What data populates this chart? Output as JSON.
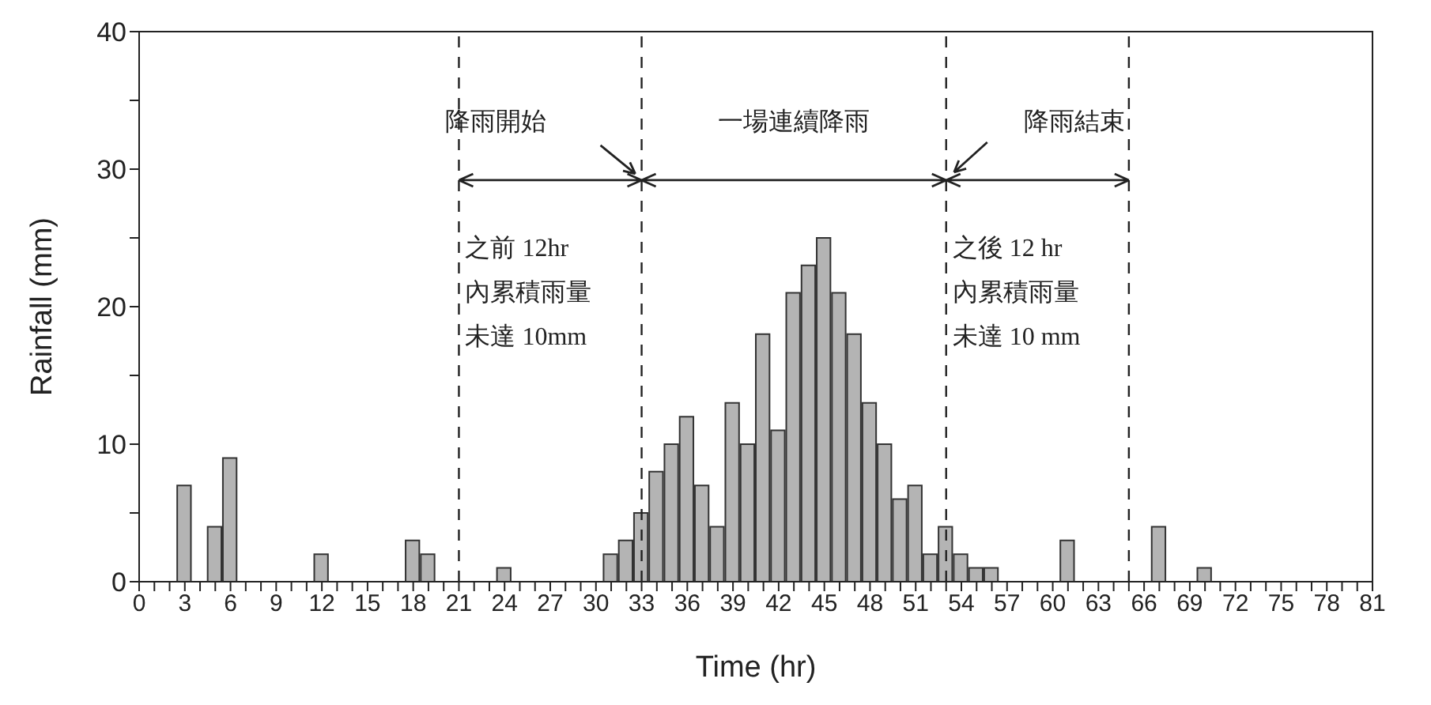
{
  "chart_data": {
    "type": "bar",
    "xlabel": "Time (hr)",
    "ylabel": "Rainfall (mm)",
    "x": [
      3,
      5,
      6,
      12,
      18,
      19,
      24,
      31,
      32,
      33,
      34,
      35,
      36,
      37,
      38,
      39,
      40,
      41,
      42,
      43,
      44,
      45,
      46,
      47,
      48,
      49,
      50,
      51,
      52,
      53,
      54,
      55,
      56,
      61,
      67,
      70
    ],
    "values": [
      7,
      4,
      9,
      2,
      3,
      2,
      1,
      2,
      3,
      5,
      8,
      10,
      12,
      7,
      4,
      13,
      10,
      18,
      11,
      21,
      23,
      25,
      21,
      18,
      13,
      10,
      6,
      7,
      2,
      4,
      2,
      1,
      1,
      3,
      4,
      1
    ],
    "color": "#b4b4b4",
    "xlim": [
      0,
      81
    ],
    "xticks": [
      0,
      {
        "value": 1,
        "label": null
      },
      {
        "value": 2,
        "label": null
      },
      3,
      {
        "value": 4,
        "label": null
      },
      {
        "value": 5,
        "label": null
      },
      6,
      {
        "value": 7,
        "label": null
      },
      {
        "value": 8,
        "label": null
      },
      9,
      {
        "value": 10,
        "label": null
      },
      {
        "value": 11,
        "label": null
      },
      12,
      {
        "value": 13,
        "label": null
      },
      {
        "value": 14,
        "label": null
      },
      15,
      {
        "value": 16,
        "label": null
      },
      {
        "value": 17,
        "label": null
      },
      18,
      {
        "value": 19,
        "label": null
      },
      {
        "value": 20,
        "label": null
      },
      21,
      {
        "value": 22,
        "label": null
      },
      {
        "value": 23,
        "label": null
      },
      24,
      {
        "value": 25,
        "label": null
      },
      {
        "value": 26,
        "label": null
      },
      27,
      {
        "value": 28,
        "label": null
      },
      {
        "value": 29,
        "label": null
      },
      30,
      {
        "value": 31,
        "label": null
      },
      {
        "value": 32,
        "label": null
      },
      33,
      {
        "value": 34,
        "label": null
      },
      {
        "value": 35,
        "label": null
      },
      36,
      {
        "value": 37,
        "label": null
      },
      {
        "value": 38,
        "label": null
      },
      39,
      {
        "value": 40,
        "label": null
      },
      {
        "value": 41,
        "label": null
      },
      42,
      {
        "value": 43,
        "label": null
      },
      {
        "value": 44,
        "label": null
      },
      45,
      {
        "value": 46,
        "label": null
      },
      {
        "value": 47,
        "label": null
      },
      48,
      {
        "value": 49,
        "label": null
      },
      {
        "value": 50,
        "label": null
      },
      51,
      {
        "value": 52,
        "label": null
      },
      {
        "value": 53,
        "label": null
      },
      54,
      {
        "value": 55,
        "label": null
      },
      {
        "value": 56,
        "label": null
      },
      57,
      {
        "value": 58,
        "label": null
      },
      {
        "value": 59,
        "label": null
      },
      60,
      {
        "value": 61,
        "label": null
      },
      {
        "value": 62,
        "label": null
      },
      63,
      {
        "value": 64,
        "label": null
      },
      {
        "value": 65,
        "label": null
      },
      66,
      {
        "value": 67,
        "label": null
      },
      {
        "value": 68,
        "label": null
      },
      69,
      {
        "value": 70,
        "label": null
      },
      {
        "value": 71,
        "label": null
      },
      72,
      {
        "value": 73,
        "label": null
      },
      {
        "value": 74,
        "label": null
      },
      75,
      {
        "value": 76,
        "label": null
      },
      {
        "value": 77,
        "label": null
      },
      78,
      {
        "value": 79,
        "label": null
      },
      {
        "value": 80,
        "label": null
      },
      81
    ],
    "ylim": [
      0,
      40
    ],
    "yticks": [
      0,
      {
        "value": 5,
        "label": null
      },
      10,
      {
        "value": 15,
        "label": null
      },
      20,
      {
        "value": 25,
        "label": null
      },
      30,
      {
        "value": 35,
        "label": null
      },
      40
    ],
    "ref_lines": [
      {
        "axis": "x",
        "value": 21,
        "color": "#222222",
        "line_style": "dashed"
      },
      {
        "axis": "x",
        "value": 33,
        "color": "#222222",
        "line_style": "dashed"
      },
      {
        "axis": "x",
        "value": 53,
        "color": "#222222",
        "line_style": "dashed"
      },
      {
        "axis": "x",
        "value": 65,
        "color": "#222222",
        "line_style": "dashed"
      }
    ],
    "annotations": [
      "降雨開始",
      "一場連續降雨",
      "降雨結束",
      "之前 12hr",
      "內累積雨量",
      "未達 10mm",
      "之後 12 hr",
      "內累積雨量",
      "未達 10 mm"
    ]
  }
}
